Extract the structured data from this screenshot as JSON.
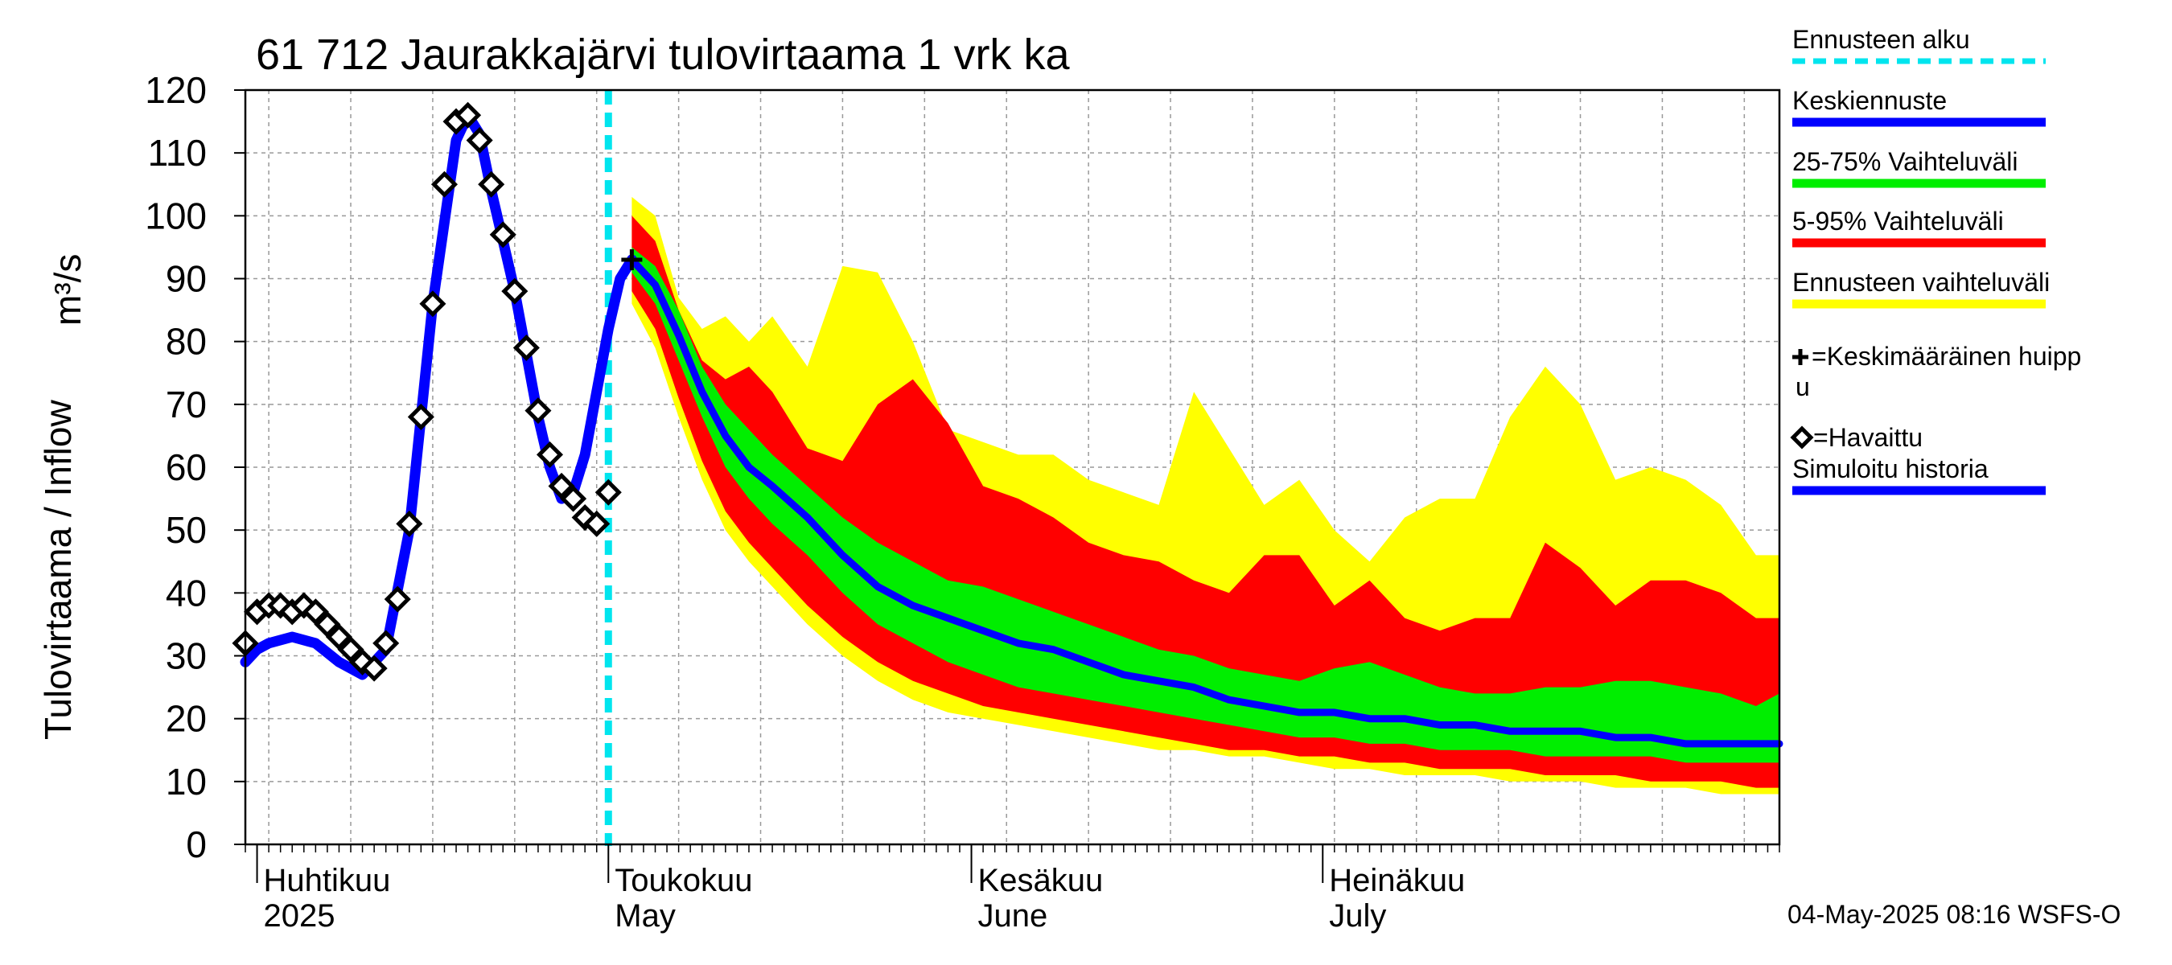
{
  "chart_data": {
    "type": "area",
    "title": "61 712 Jaurakkajärvi tulovirtaama 1 vrk ka",
    "ylabel": "Tulovirtaama / Inflow",
    "yunit": "m³/s",
    "ylim": [
      0,
      120
    ],
    "yticks": [
      0,
      10,
      20,
      30,
      40,
      50,
      60,
      70,
      80,
      90,
      100,
      110,
      120
    ],
    "xlim": [
      "2025-03-31",
      "2025-08-09"
    ],
    "grid": true,
    "month_labels": [
      {
        "date": "2025-04-01",
        "fi": "Huhtikuu",
        "en": "2025"
      },
      {
        "date": "2025-05-01",
        "fi": "Toukokuu",
        "en": "May"
      },
      {
        "date": "2025-06-01",
        "fi": "Kesäkuu",
        "en": "June"
      },
      {
        "date": "2025-07-01",
        "fi": "Heinäkuu",
        "en": "July"
      }
    ],
    "forecast_start": "2025-05-01",
    "legend": {
      "placement": "right",
      "items": [
        {
          "key": "forecast_start",
          "label": "Ennusteen alku",
          "color": "#00e5ee",
          "style": "dashed"
        },
        {
          "key": "median",
          "label": "Keskiennuste",
          "color": "#0000ff",
          "style": "line"
        },
        {
          "key": "p25_75",
          "label": "25-75% Vaihteluväli",
          "color": "#00ee00",
          "style": "line"
        },
        {
          "key": "p5_95",
          "label": "5-95% Vaihteluväli",
          "color": "#ff0000",
          "style": "line"
        },
        {
          "key": "range",
          "label": "Ennusteen vaihteluväli",
          "color": "#ffff00",
          "style": "line"
        },
        {
          "key": "peak",
          "label": "=Keskimääräinen huippu",
          "style": "plus"
        },
        {
          "key": "observed",
          "label": "=Havaittu",
          "style": "diamond"
        },
        {
          "key": "simulated",
          "label": "Simuloitu historia",
          "color": "#0000ff",
          "style": "line"
        }
      ]
    },
    "series": [
      {
        "key": "simulated",
        "x": [
          "2025-03-31",
          "2025-04-01",
          "2025-04-02",
          "2025-04-04",
          "2025-04-06",
          "2025-04-08",
          "2025-04-10",
          "2025-04-12",
          "2025-04-14",
          "2025-04-16",
          "2025-04-18",
          "2025-04-19",
          "2025-04-20",
          "2025-04-21",
          "2025-04-22",
          "2025-04-23",
          "2025-04-24",
          "2025-04-25",
          "2025-04-26",
          "2025-04-27",
          "2025-04-28",
          "2025-04-29",
          "2025-04-30",
          "2025-05-01",
          "2025-05-02",
          "2025-05-03"
        ],
        "values": [
          29,
          31,
          32,
          33,
          32,
          29,
          27,
          31,
          50,
          86,
          112,
          116,
          113,
          104,
          96,
          88,
          78,
          68,
          60,
          55,
          56,
          62,
          72,
          82,
          90,
          93
        ]
      },
      {
        "key": "median",
        "x": [
          "2025-05-03",
          "2025-05-05",
          "2025-05-07",
          "2025-05-09",
          "2025-05-11",
          "2025-05-13",
          "2025-05-15",
          "2025-05-18",
          "2025-05-21",
          "2025-05-24",
          "2025-05-27",
          "2025-05-30",
          "2025-06-02",
          "2025-06-05",
          "2025-06-08",
          "2025-06-11",
          "2025-06-14",
          "2025-06-17",
          "2025-06-20",
          "2025-06-23",
          "2025-06-26",
          "2025-06-29",
          "2025-07-02",
          "2025-07-05",
          "2025-07-08",
          "2025-07-11",
          "2025-07-14",
          "2025-07-17",
          "2025-07-20",
          "2025-07-23",
          "2025-07-26",
          "2025-07-29",
          "2025-08-01",
          "2025-08-04",
          "2025-08-07",
          "2025-08-09"
        ],
        "values": [
          93,
          89,
          81,
          72,
          65,
          60,
          57,
          52,
          46,
          41,
          38,
          36,
          34,
          32,
          31,
          29,
          27,
          26,
          25,
          23,
          22,
          21,
          21,
          20,
          20,
          19,
          19,
          18,
          18,
          18,
          17,
          17,
          16,
          16,
          16,
          16
        ]
      },
      {
        "key": "p25_75",
        "x": [
          "2025-05-03",
          "2025-05-05",
          "2025-05-07",
          "2025-05-09",
          "2025-05-11",
          "2025-05-13",
          "2025-05-15",
          "2025-05-18",
          "2025-05-21",
          "2025-05-24",
          "2025-05-27",
          "2025-05-30",
          "2025-06-02",
          "2025-06-05",
          "2025-06-08",
          "2025-06-11",
          "2025-06-14",
          "2025-06-17",
          "2025-06-20",
          "2025-06-23",
          "2025-06-26",
          "2025-06-29",
          "2025-07-02",
          "2025-07-05",
          "2025-07-08",
          "2025-07-11",
          "2025-07-14",
          "2025-07-17",
          "2025-07-20",
          "2025-07-23",
          "2025-07-26",
          "2025-07-29",
          "2025-08-01",
          "2025-08-04",
          "2025-08-07",
          "2025-08-09"
        ],
        "low": [
          91,
          86,
          77,
          68,
          60,
          55,
          51,
          46,
          40,
          35,
          32,
          29,
          27,
          25,
          24,
          23,
          22,
          21,
          20,
          19,
          18,
          17,
          17,
          16,
          16,
          15,
          15,
          15,
          14,
          14,
          14,
          14,
          13,
          13,
          13,
          13
        ],
        "high": [
          95,
          92,
          85,
          76,
          70,
          66,
          62,
          57,
          52,
          48,
          45,
          42,
          41,
          39,
          37,
          35,
          33,
          31,
          30,
          28,
          27,
          26,
          28,
          29,
          27,
          25,
          24,
          24,
          25,
          25,
          26,
          26,
          25,
          24,
          22,
          24
        ]
      },
      {
        "key": "p5_95",
        "x": [
          "2025-05-03",
          "2025-05-05",
          "2025-05-07",
          "2025-05-09",
          "2025-05-11",
          "2025-05-13",
          "2025-05-15",
          "2025-05-18",
          "2025-05-21",
          "2025-05-24",
          "2025-05-27",
          "2025-05-30",
          "2025-06-02",
          "2025-06-05",
          "2025-06-08",
          "2025-06-11",
          "2025-06-14",
          "2025-06-17",
          "2025-06-20",
          "2025-06-23",
          "2025-06-26",
          "2025-06-29",
          "2025-07-02",
          "2025-07-05",
          "2025-07-08",
          "2025-07-11",
          "2025-07-14",
          "2025-07-17",
          "2025-07-20",
          "2025-07-23",
          "2025-07-26",
          "2025-07-29",
          "2025-08-01",
          "2025-08-04",
          "2025-08-07",
          "2025-08-09"
        ],
        "low": [
          88,
          82,
          71,
          61,
          53,
          48,
          44,
          38,
          33,
          29,
          26,
          24,
          22,
          21,
          20,
          19,
          18,
          17,
          16,
          15,
          15,
          14,
          14,
          13,
          13,
          12,
          12,
          12,
          11,
          11,
          11,
          10,
          10,
          10,
          9,
          9
        ],
        "high": [
          100,
          96,
          85,
          77,
          74,
          76,
          72,
          63,
          61,
          70,
          74,
          67,
          57,
          55,
          52,
          48,
          46,
          45,
          42,
          40,
          46,
          46,
          38,
          42,
          36,
          34,
          36,
          36,
          48,
          44,
          38,
          42,
          42,
          40,
          36,
          36
        ]
      },
      {
        "key": "range",
        "x": [
          "2025-05-03",
          "2025-05-05",
          "2025-05-07",
          "2025-05-09",
          "2025-05-11",
          "2025-05-13",
          "2025-05-15",
          "2025-05-18",
          "2025-05-21",
          "2025-05-24",
          "2025-05-27",
          "2025-05-30",
          "2025-06-02",
          "2025-06-05",
          "2025-06-08",
          "2025-06-11",
          "2025-06-14",
          "2025-06-17",
          "2025-06-20",
          "2025-06-23",
          "2025-06-26",
          "2025-06-29",
          "2025-07-02",
          "2025-07-05",
          "2025-07-08",
          "2025-07-11",
          "2025-07-14",
          "2025-07-17",
          "2025-07-20",
          "2025-07-23",
          "2025-07-26",
          "2025-07-29",
          "2025-08-01",
          "2025-08-04",
          "2025-08-07",
          "2025-08-09"
        ],
        "low": [
          86,
          79,
          68,
          58,
          50,
          45,
          41,
          35,
          30,
          26,
          23,
          21,
          20,
          19,
          18,
          17,
          16,
          15,
          15,
          14,
          14,
          13,
          12,
          12,
          11,
          11,
          11,
          10,
          10,
          10,
          9,
          9,
          9,
          8,
          8,
          8
        ],
        "high": [
          103,
          100,
          87,
          82,
          84,
          80,
          84,
          76,
          92,
          91,
          80,
          66,
          64,
          62,
          62,
          58,
          56,
          54,
          72,
          63,
          54,
          58,
          50,
          45,
          52,
          55,
          55,
          68,
          76,
          70,
          58,
          60,
          58,
          54,
          46,
          46
        ]
      }
    ],
    "observed": {
      "x": [
        "2025-03-31",
        "2025-04-01",
        "2025-04-02",
        "2025-04-03",
        "2025-04-04",
        "2025-04-05",
        "2025-04-06",
        "2025-04-07",
        "2025-04-08",
        "2025-04-09",
        "2025-04-10",
        "2025-04-11",
        "2025-04-12",
        "2025-04-13",
        "2025-04-14",
        "2025-04-15",
        "2025-04-16",
        "2025-04-17",
        "2025-04-18",
        "2025-04-19",
        "2025-04-20",
        "2025-04-21",
        "2025-04-22",
        "2025-04-23",
        "2025-04-24",
        "2025-04-25",
        "2025-04-26",
        "2025-04-27",
        "2025-04-28",
        "2025-04-29",
        "2025-04-30",
        "2025-05-01"
      ],
      "values": [
        32,
        37,
        38,
        38,
        37,
        38,
        37,
        35,
        33,
        31,
        29,
        28,
        32,
        39,
        51,
        68,
        86,
        105,
        115,
        116,
        112,
        105,
        97,
        88,
        79,
        69,
        62,
        57,
        55,
        52,
        51,
        56
      ]
    },
    "peak": {
      "x": "2025-05-03",
      "y": 93
    },
    "footer": "04-May-2025 08:16 WSFS-O"
  }
}
